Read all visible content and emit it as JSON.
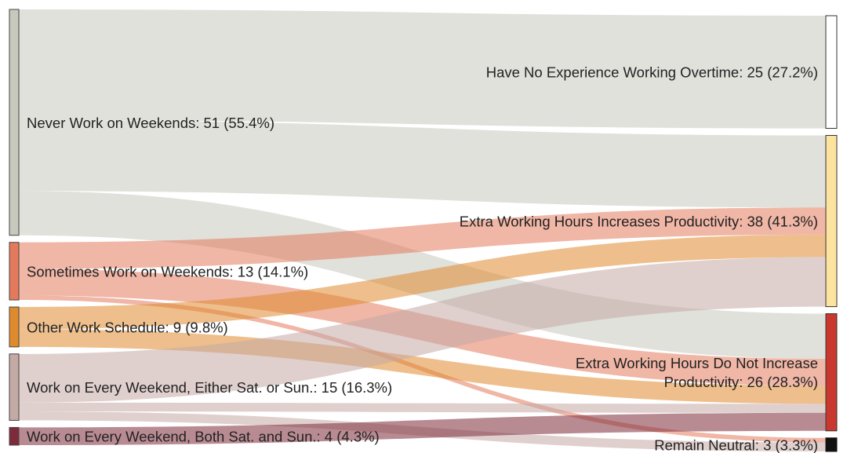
{
  "sources": [
    {
      "id": "never",
      "label": "Never Work on Weekends: 51 (55.4%)",
      "value": 51,
      "color": "#c7c9bd"
    },
    {
      "id": "sometimes",
      "label": "Sometimes Work on Weekends: 13 (14.1%)",
      "value": 13,
      "color": "#e37a5c"
    },
    {
      "id": "other",
      "label": "Other Work Schedule: 9 (9.8%)",
      "value": 9,
      "color": "#e08a2e"
    },
    {
      "id": "either",
      "label": "Work on Every Weekend, Either Sat. or Sun.: 15 (16.3%)",
      "value": 15,
      "color": "#c4aaa5"
    },
    {
      "id": "both",
      "label": "Work on Every Weekend, Both Sat. and Sun.: 4 (4.3%)",
      "value": 4,
      "color": "#7d2b3a"
    }
  ],
  "targets": [
    {
      "id": "noexp",
      "label_lines": [
        "Have No Experience Working Overtime: 25 (27.2%)"
      ],
      "value": 25,
      "color": "#ffffff",
      "stroke": "#333333"
    },
    {
      "id": "increase",
      "label_lines": [
        "Extra Working Hours Increases Productivity: 38 (41.3%)"
      ],
      "value": 38,
      "color": "#fde3a0",
      "stroke": "#333333"
    },
    {
      "id": "notinc",
      "label_lines": [
        "Extra Working Hours Do Not Increase",
        "Productivity: 26 (28.3%)"
      ],
      "value": 26,
      "color": "#c9382f",
      "stroke": "#333333"
    },
    {
      "id": "neutral",
      "label_lines": [
        "Remain Neutral: 3 (3.3%)"
      ],
      "value": 3,
      "color": "#111111",
      "stroke": "#111111"
    }
  ],
  "flows": [
    {
      "source": "never",
      "target": "noexp",
      "value": 25
    },
    {
      "source": "never",
      "target": "increase",
      "value": 16
    },
    {
      "source": "never",
      "target": "notinc",
      "value": 10
    },
    {
      "source": "sometimes",
      "target": "increase",
      "value": 6
    },
    {
      "source": "sometimes",
      "target": "notinc",
      "value": 6
    },
    {
      "source": "sometimes",
      "target": "neutral",
      "value": 1
    },
    {
      "source": "other",
      "target": "increase",
      "value": 5
    },
    {
      "source": "other",
      "target": "notinc",
      "value": 4
    },
    {
      "source": "either",
      "target": "increase",
      "value": 11
    },
    {
      "source": "either",
      "target": "notinc",
      "value": 2
    },
    {
      "source": "either",
      "target": "neutral",
      "value": 2
    },
    {
      "source": "both",
      "target": "notinc",
      "value": 4
    }
  ]
}
